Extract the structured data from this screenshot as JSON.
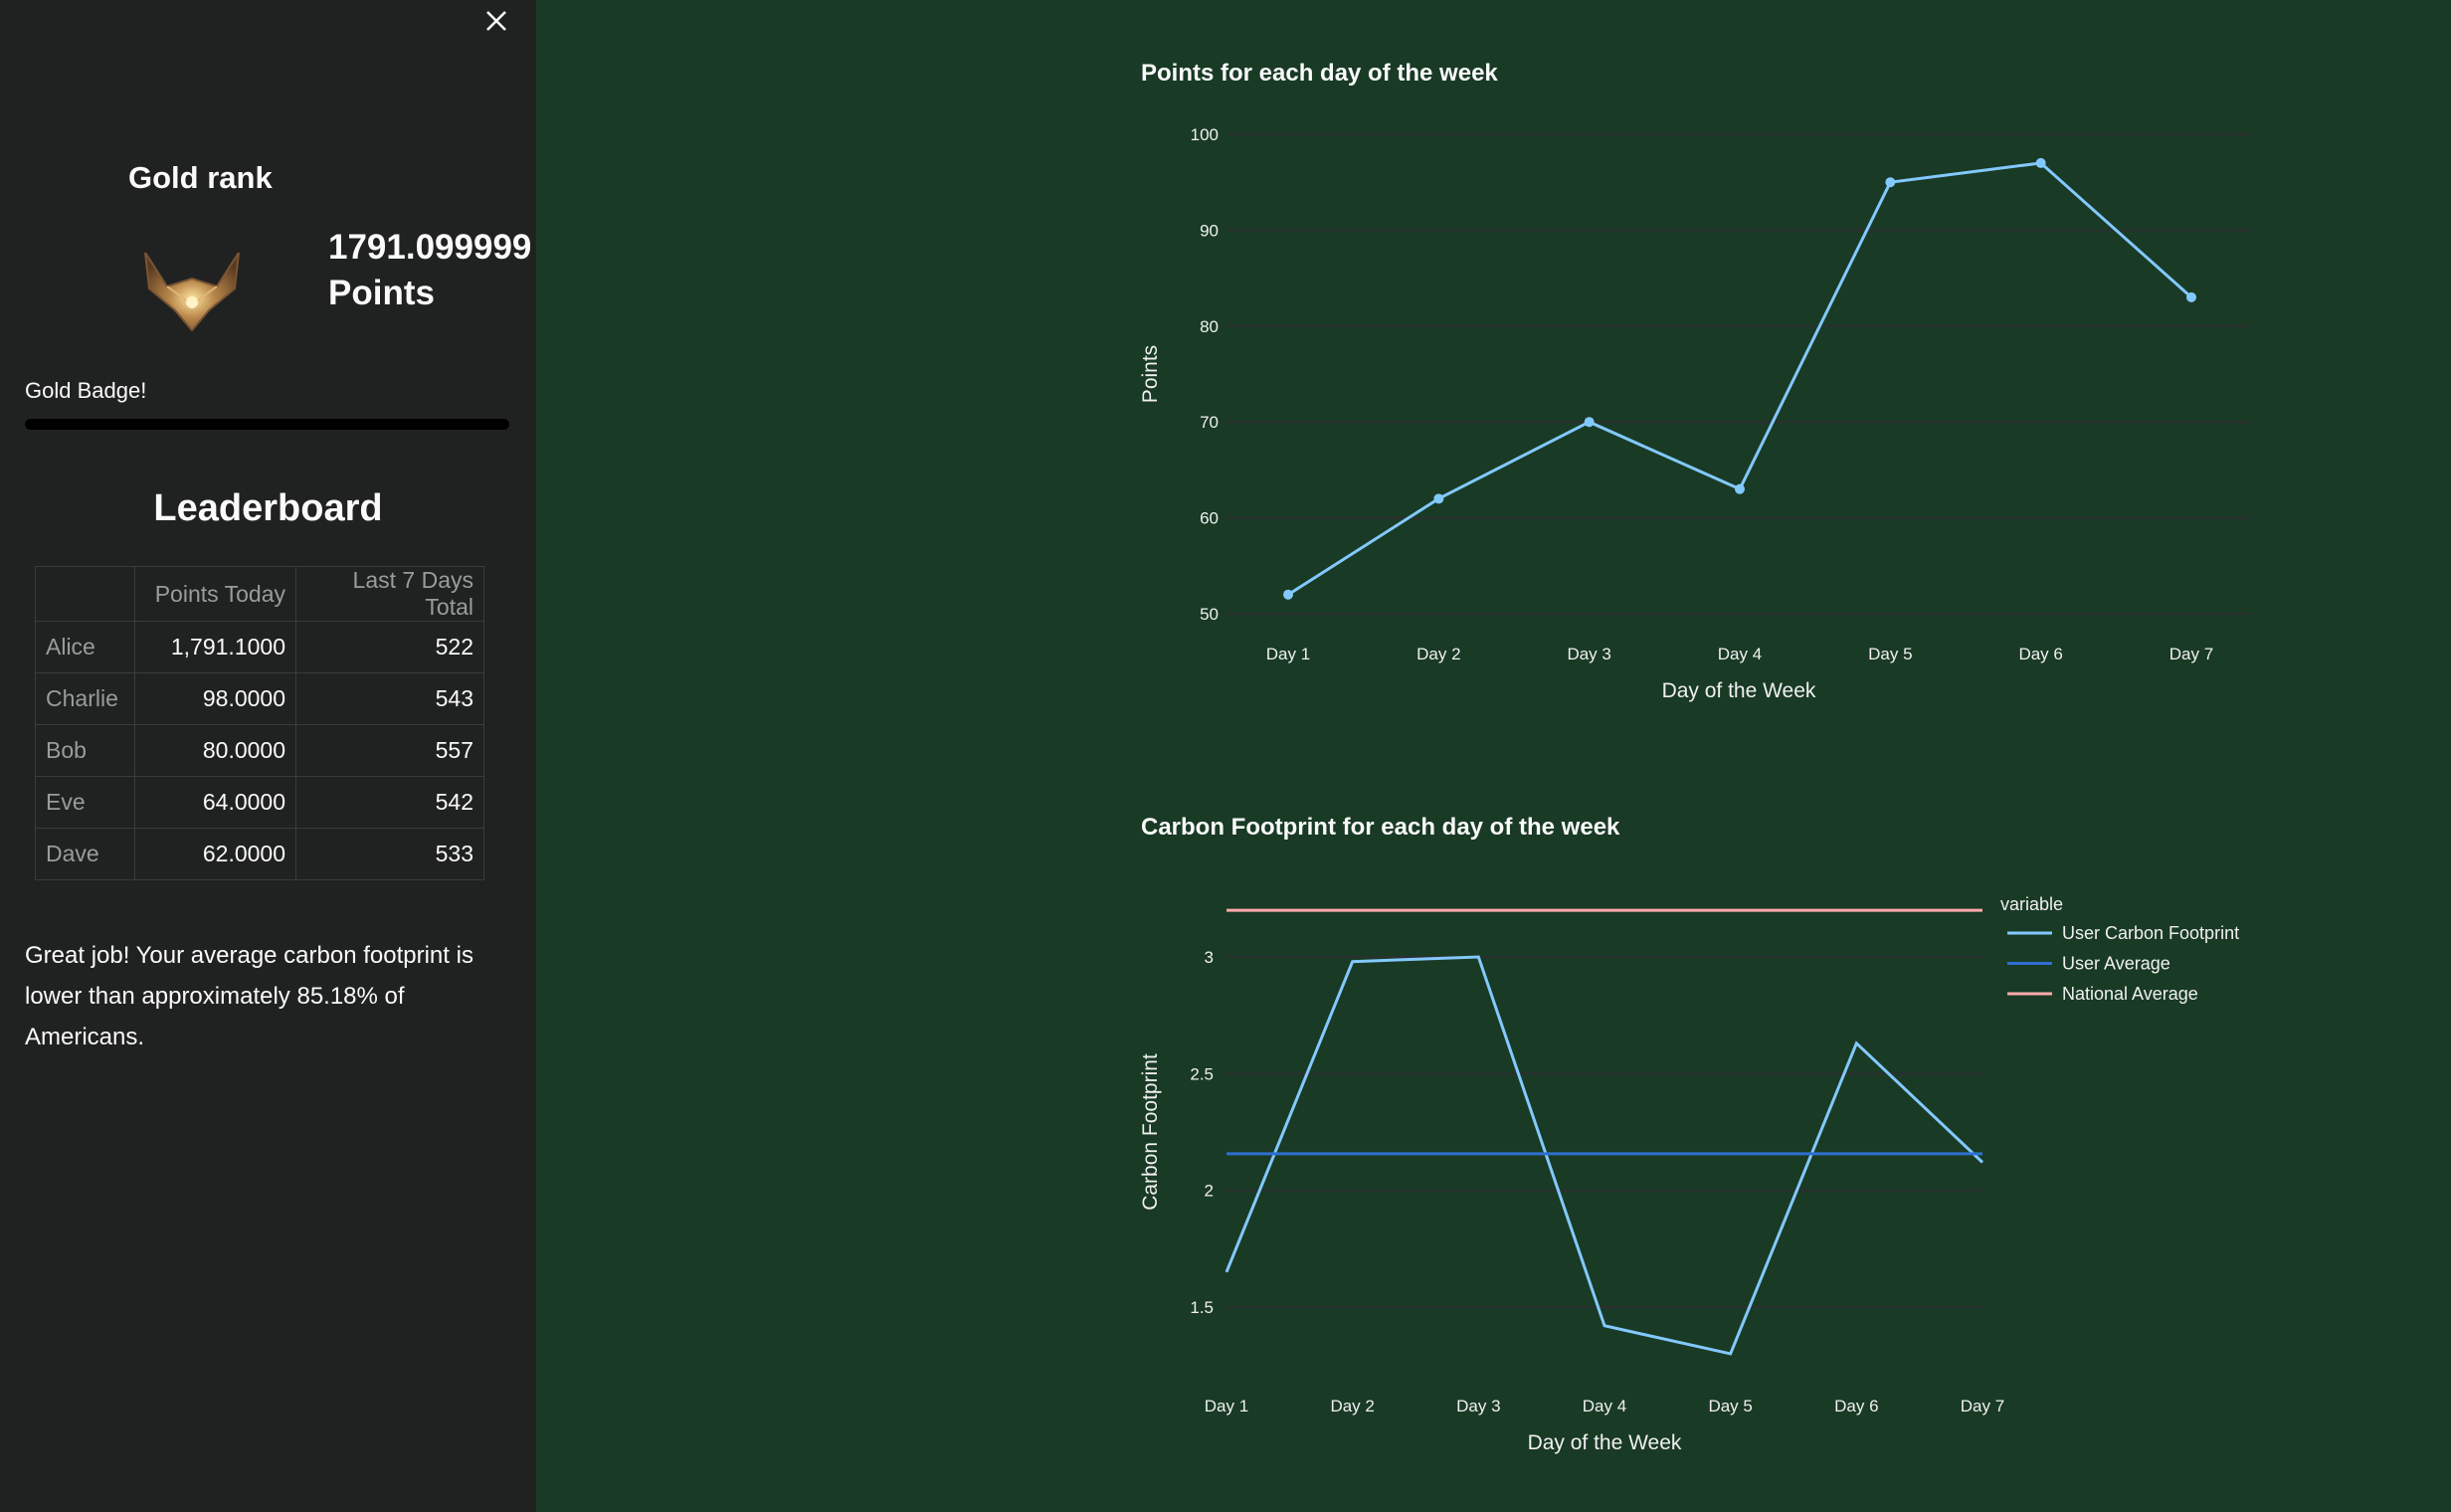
{
  "sidebar": {
    "rank_title": "Gold rank",
    "points_value": "1791.099999",
    "points_label": "Points",
    "badge_label": "Gold Badge!",
    "badge_progress": 1.0,
    "leaderboard_title": "Leaderboard",
    "table": {
      "headers": [
        "",
        "Points Today",
        "Last 7 Days Total"
      ],
      "rows": [
        [
          "Alice",
          "1,791.1000",
          "522"
        ],
        [
          "Charlie",
          "98.0000",
          "543"
        ],
        [
          "Bob",
          "80.0000",
          "557"
        ],
        [
          "Eve",
          "64.0000",
          "542"
        ],
        [
          "Dave",
          "62.0000",
          "533"
        ]
      ]
    },
    "message": "Great job! Your average carbon footprint is lower than approximately 85.18% of Americans."
  },
  "colors": {
    "sidebar_bg": "#202221",
    "main_bg": "#193a25",
    "user_line": "#83c9ff",
    "user_average": "#2e6fd0",
    "national_average": "#ffabab",
    "grid": "#2b2f30"
  },
  "chart_data": [
    {
      "type": "line",
      "title": "Points for each day of the week",
      "xlabel": "Day of the Week",
      "ylabel": "Points",
      "categories": [
        "Day 1",
        "Day 2",
        "Day 3",
        "Day 4",
        "Day 5",
        "Day 6",
        "Day 7"
      ],
      "values": [
        52,
        62,
        70,
        63,
        95,
        97,
        83
      ],
      "yticks": [
        "50",
        "60",
        "70",
        "80",
        "90",
        "100"
      ],
      "ytick_values": [
        50,
        60,
        70,
        80,
        90,
        100
      ],
      "markers": true,
      "grid": true
    },
    {
      "type": "line",
      "title": "Carbon Footprint for each day of the week",
      "xlabel": "Day of the Week",
      "ylabel": "Carbon Footprint",
      "categories": [
        "Day 1",
        "Day 2",
        "Day 3",
        "Day 4",
        "Day 5",
        "Day 6",
        "Day 7"
      ],
      "yticks": [
        "1.5",
        "2",
        "2.5",
        "3"
      ],
      "ytick_values": [
        1.5,
        2,
        2.5,
        3
      ],
      "legend_title": "variable",
      "legend_position": "right",
      "series": [
        {
          "name": "User Carbon Footprint",
          "values": [
            1.65,
            2.98,
            3.0,
            1.42,
            1.3,
            2.63,
            2.12
          ]
        },
        {
          "name": "User Average",
          "values": [
            2.157,
            2.157,
            2.157,
            2.157,
            2.157,
            2.157,
            2.157
          ]
        },
        {
          "name": "National Average",
          "values": [
            3.2,
            3.2,
            3.2,
            3.2,
            3.2,
            3.2,
            3.2
          ]
        }
      ],
      "grid": true
    }
  ]
}
